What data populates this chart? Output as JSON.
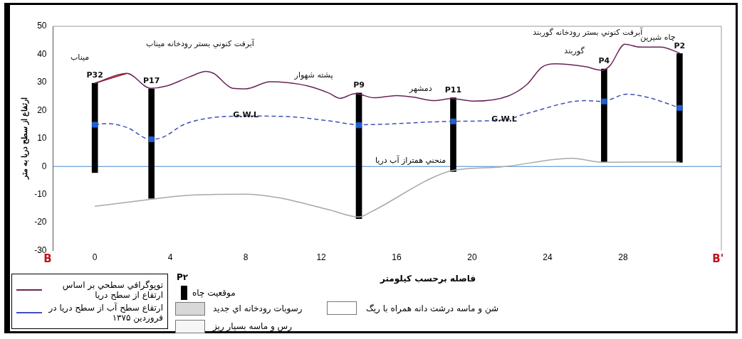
{
  "chart_data": {
    "type": "line",
    "xlabel": "فاصله برحسب كيلومتر",
    "ylabel": "ارتفاع از سطح دريا به متر",
    "xlim": [
      0,
      31
    ],
    "xticks": [
      0,
      4,
      8,
      12,
      16,
      20,
      24,
      28
    ],
    "ylim": [
      -30,
      50
    ],
    "yticks": [
      -30,
      -20,
      -10,
      0,
      10,
      20,
      30,
      40,
      50
    ],
    "grid": false,
    "legend": "bottom",
    "series": [
      {
        "name": "توپوگرافي سطحي بر اساس ارتفاع از سطح دريا",
        "color": "#6b2358",
        "x": [
          0,
          1.7,
          2.95,
          3.8,
          5,
          5.9,
          6.3,
          7.3,
          8,
          9.3,
          10.2,
          11.3,
          12.4,
          13,
          13.8,
          14.8,
          16,
          16.9,
          18,
          18.9,
          20.1,
          21.9,
          22.9,
          23.7,
          24.4,
          26,
          26.9,
          27.3,
          28.1,
          28.9,
          30,
          31
        ],
        "values": [
          29.7,
          33.2,
          27.9,
          28.7,
          31.9,
          33.9,
          33.2,
          27.9,
          27.7,
          30.2,
          29.9,
          28.7,
          26.2,
          24.3,
          26,
          24.5,
          25.3,
          24.7,
          23.5,
          24.2,
          23.3,
          25.1,
          29.2,
          35.4,
          36.6,
          35.6,
          34.3,
          35.9,
          43.6,
          42.6,
          42.6,
          40.5
        ]
      },
      {
        "color": "#b01818",
        "x": [
          0,
          1.7
        ],
        "values": [
          29.7,
          33.2
        ]
      },
      {
        "name": "ارتفاع سطح آب از سطح دريا در فروردين ۱۳۷۵",
        "color": "#4050b8",
        "line_style": "dashed",
        "x": [
          0,
          0.6,
          1.7,
          2.95,
          3.6,
          4.7,
          5.8,
          8,
          10.2,
          12.4,
          14,
          18.9,
          21.7,
          22.9,
          26,
          26.9,
          28.2,
          29.4,
          31
        ],
        "values": [
          14.9,
          15.3,
          13.9,
          9.7,
          10.4,
          14.9,
          17,
          18,
          17.8,
          16.3,
          14.9,
          16.1,
          16.6,
          18.9,
          23.5,
          23.2,
          25.8,
          24.5,
          20.9
        ]
      },
      {
        "color": "#a8a8a8",
        "x": [
          0,
          2.95,
          4.7,
          8,
          9.7,
          12.4,
          14,
          14.7,
          17.8,
          18.9,
          21.5,
          25.3,
          26.9,
          31
        ],
        "values": [
          -14.2,
          -11.7,
          -10.4,
          -9.9,
          -11.1,
          -15.4,
          -18,
          -16,
          -4.3,
          -1.5,
          -0.2,
          2.9,
          1.5,
          1.6
        ]
      },
      {
        "type": "bar",
        "name": "موقعيت چاه",
        "color": "#000000",
        "x": [
          0,
          3,
          14,
          19,
          27,
          31
        ],
        "base": [
          -2.2,
          -11.4,
          -18.6,
          -1.8,
          1.5,
          1.5
        ],
        "values": [
          31.9,
          39.1,
          44.8,
          26.3,
          33.3,
          38.8
        ]
      },
      {
        "type": "scatter",
        "color": "#1f5fd6",
        "marker": "square",
        "x": [
          0,
          3,
          14,
          19,
          27,
          31
        ],
        "values": [
          14.9,
          9.7,
          14.7,
          16.1,
          23.2,
          20.9
        ]
      }
    ],
    "ref_lines": [
      {
        "axis": "y",
        "value": 0,
        "label": "منحني همتراز آب دريا",
        "color": "#4a86c8"
      }
    ],
    "annotations": [
      {
        "text": "P32",
        "x": 0,
        "y": 29.7
      },
      {
        "text": "P17",
        "x": 3,
        "y": 27.7
      },
      {
        "text": "P9",
        "x": 14,
        "y": 26.2
      },
      {
        "text": "P11",
        "x": 19,
        "y": 24.5
      },
      {
        "text": "P4",
        "x": 27,
        "y": 34.8
      },
      {
        "text": "P2",
        "x": 31,
        "y": 40.3
      },
      {
        "text": "G.W.L",
        "x": 8,
        "y": 18
      },
      {
        "text": "G.W.L",
        "x": 21.7,
        "y": 16.6
      },
      "ميناب",
      "آبرفت كنوني بستر رودخانه ميناب",
      "پشته شهوار",
      "دمشهر",
      "گوربند",
      "آبرفت كنوني بستر رودخانه گوربند",
      "چاه شيرين",
      "B",
      "B'",
      "P۲",
      "رسوبات رودخانه اي جديد",
      "رس و ماسه بسيار ريز",
      "شن و ماسه درشت دانه همراه با ريگ"
    ]
  }
}
